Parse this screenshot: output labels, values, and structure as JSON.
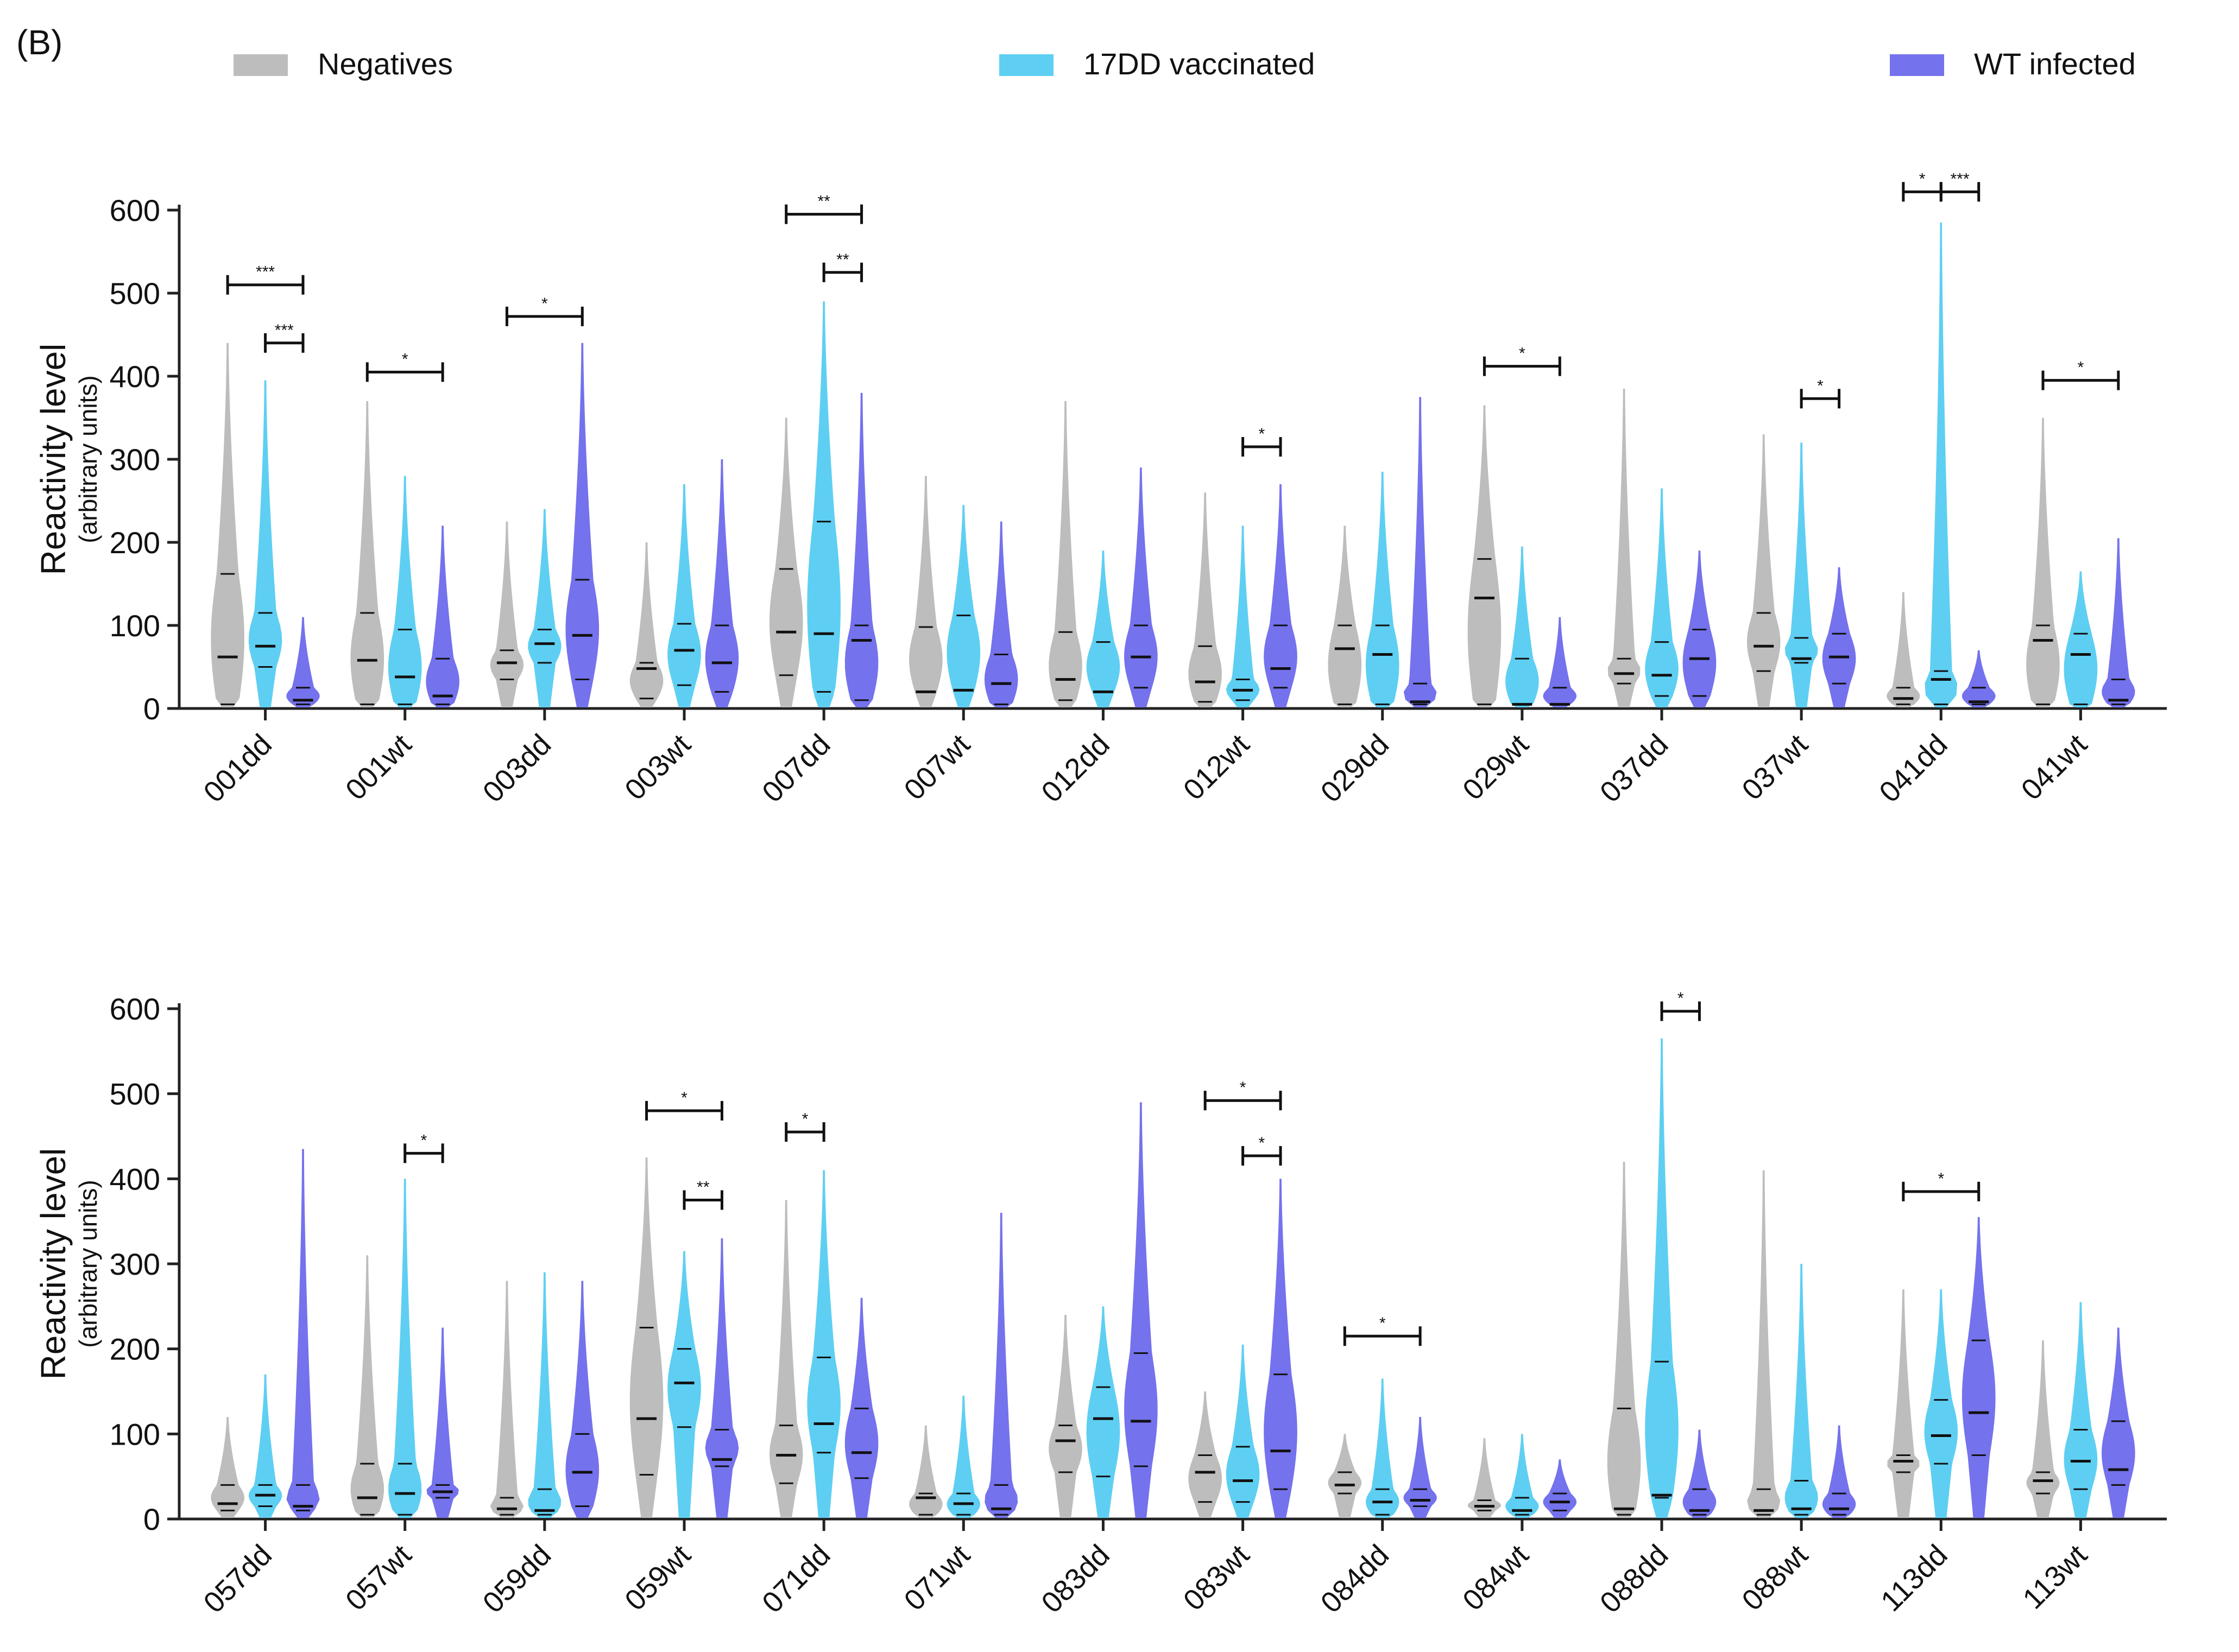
{
  "panel_label": "(B)",
  "legend": [
    {
      "label": "Negatives",
      "color": "#bdbdbd"
    },
    {
      "label": "17DD vaccinated",
      "color": "#5ecff2"
    },
    {
      "label": "WT infected",
      "color": "#7472ec"
    }
  ],
  "chart_data": [
    {
      "type": "violin",
      "title": "",
      "ylabel": "Reactivity level",
      "ylabel_sub": "(arbitrary units)",
      "xlabel": "",
      "ylim": [
        0,
        600
      ],
      "yticks": [
        0,
        100,
        200,
        300,
        400,
        500,
        600
      ],
      "categories": [
        "001dd",
        "001wt",
        "003dd",
        "003wt",
        "007dd",
        "007wt",
        "012dd",
        "012wt",
        "029dd",
        "029wt",
        "037dd",
        "037wt",
        "041dd",
        "041wt"
      ],
      "series": [
        {
          "name": "Negatives",
          "color": "#bdbdbd",
          "max": [
            440,
            370,
            225,
            200,
            350,
            280,
            370,
            260,
            220,
            365,
            385,
            330,
            140,
            350
          ],
          "q1": [
            5,
            5,
            35,
            12,
            40,
            20,
            10,
            8,
            5,
            5,
            30,
            45,
            5,
            5
          ],
          "median": [
            62,
            58,
            55,
            48,
            92,
            20,
            35,
            32,
            72,
            133,
            42,
            75,
            12,
            82
          ],
          "q3": [
            162,
            115,
            70,
            55,
            168,
            98,
            92,
            75,
            100,
            180,
            60,
            115,
            25,
            100
          ]
        },
        {
          "name": "17DD vaccinated",
          "color": "#5ecff2",
          "max": [
            395,
            280,
            240,
            270,
            490,
            245,
            190,
            220,
            285,
            195,
            265,
            320,
            585,
            165
          ],
          "q1": [
            50,
            5,
            55,
            28,
            20,
            22,
            20,
            10,
            5,
            5,
            15,
            55,
            5,
            5
          ],
          "median": [
            75,
            38,
            78,
            70,
            90,
            22,
            20,
            22,
            65,
            5,
            40,
            60,
            35,
            65
          ],
          "q3": [
            115,
            95,
            95,
            102,
            225,
            112,
            80,
            35,
            100,
            60,
            80,
            85,
            45,
            90
          ]
        },
        {
          "name": "WT infected",
          "color": "#7472ec",
          "max": [
            110,
            220,
            440,
            300,
            380,
            225,
            290,
            270,
            375,
            110,
            190,
            170,
            70,
            205
          ],
          "q1": [
            5,
            5,
            35,
            20,
            10,
            5,
            25,
            25,
            5,
            5,
            15,
            30,
            5,
            5
          ],
          "median": [
            10,
            15,
            88,
            55,
            82,
            30,
            62,
            48,
            8,
            5,
            60,
            62,
            8,
            10
          ],
          "q3": [
            25,
            60,
            155,
            100,
            100,
            65,
            100,
            100,
            30,
            25,
            95,
            90,
            25,
            35
          ]
        }
      ],
      "significance": [
        {
          "group": 0,
          "from": "Negatives",
          "to": "WT infected",
          "label": "***",
          "y": 510
        },
        {
          "group": 0,
          "from": "17DD vaccinated",
          "to": "WT infected",
          "label": "***",
          "y": 440
        },
        {
          "group": 1,
          "from": "Negatives",
          "to": "WT infected",
          "label": "*",
          "y": 405
        },
        {
          "group": 2,
          "from": "Negatives",
          "to": "WT infected",
          "label": "*",
          "y": 472
        },
        {
          "group": 4,
          "from": "Negatives",
          "to": "WT infected",
          "label": "**",
          "y": 595
        },
        {
          "group": 4,
          "from": "17DD vaccinated",
          "to": "WT infected",
          "label": "**",
          "y": 525
        },
        {
          "group": 7,
          "from": "17DD vaccinated",
          "to": "WT infected",
          "label": "*",
          "y": 315
        },
        {
          "group": 9,
          "from": "Negatives",
          "to": "WT infected",
          "label": "*",
          "y": 412
        },
        {
          "group": 11,
          "from": "17DD vaccinated",
          "to": "WT infected",
          "label": "*",
          "y": 373
        },
        {
          "group": 12,
          "from": "Negatives",
          "to": "17DD vaccinated",
          "label": "*",
          "y": 622
        },
        {
          "group": 12,
          "from": "17DD vaccinated",
          "to": "WT infected",
          "label": "***",
          "y": 622
        },
        {
          "group": 13,
          "from": "Negatives",
          "to": "WT infected",
          "label": "*",
          "y": 395
        }
      ]
    },
    {
      "type": "violin",
      "title": "",
      "ylabel": "Reactivity level",
      "ylabel_sub": "(arbitrary units)",
      "xlabel": "",
      "ylim": [
        0,
        600
      ],
      "yticks": [
        0,
        100,
        200,
        300,
        400,
        500,
        600
      ],
      "categories": [
        "057dd",
        "057wt",
        "059dd",
        "059wt",
        "071dd",
        "071wt",
        "083dd",
        "083wt",
        "084dd",
        "084wt",
        "088dd",
        "088wt",
        "113dd",
        "113wt"
      ],
      "series": [
        {
          "name": "Negatives",
          "color": "#bdbdbd",
          "max": [
            120,
            310,
            280,
            425,
            375,
            110,
            240,
            150,
            100,
            95,
            420,
            410,
            270,
            210
          ],
          "q1": [
            10,
            5,
            5,
            52,
            42,
            5,
            55,
            20,
            30,
            10,
            5,
            5,
            55,
            30
          ],
          "median": [
            18,
            25,
            12,
            118,
            75,
            25,
            92,
            55,
            40,
            15,
            12,
            10,
            68,
            45
          ],
          "q3": [
            40,
            65,
            25,
            225,
            110,
            30,
            110,
            75,
            55,
            22,
            130,
            35,
            75,
            55
          ]
        },
        {
          "name": "17DD vaccinated",
          "color": "#5ecff2",
          "max": [
            170,
            400,
            290,
            315,
            410,
            145,
            250,
            205,
            165,
            100,
            565,
            300,
            270,
            255
          ],
          "q1": [
            15,
            5,
            5,
            108,
            78,
            5,
            50,
            20,
            5,
            5,
            25,
            5,
            65,
            35
          ],
          "median": [
            28,
            30,
            10,
            160,
            112,
            18,
            118,
            45,
            20,
            10,
            28,
            12,
            98,
            68
          ],
          "q3": [
            40,
            65,
            35,
            200,
            190,
            30,
            155,
            85,
            35,
            25,
            185,
            45,
            140,
            105
          ]
        },
        {
          "name": "WT infected",
          "color": "#7472ec",
          "max": [
            435,
            225,
            280,
            330,
            260,
            360,
            490,
            400,
            120,
            70,
            105,
            110,
            355,
            225
          ],
          "q1": [
            10,
            25,
            15,
            62,
            48,
            5,
            62,
            35,
            15,
            10,
            5,
            5,
            75,
            40
          ],
          "median": [
            15,
            32,
            55,
            70,
            78,
            12,
            115,
            80,
            22,
            20,
            10,
            12,
            125,
            58
          ],
          "q3": [
            40,
            40,
            100,
            105,
            130,
            40,
            195,
            170,
            35,
            30,
            35,
            30,
            210,
            115
          ]
        }
      ],
      "significance": [
        {
          "group": 1,
          "from": "17DD vaccinated",
          "to": "WT infected",
          "label": "*",
          "y": 430
        },
        {
          "group": 3,
          "from": "Negatives",
          "to": "WT infected",
          "label": "*",
          "y": 480
        },
        {
          "group": 3,
          "from": "17DD vaccinated",
          "to": "WT infected",
          "label": "**",
          "y": 375
        },
        {
          "group": 4,
          "from": "Negatives",
          "to": "17DD vaccinated",
          "label": "*",
          "y": 455
        },
        {
          "group": 7,
          "from": "Negatives",
          "to": "WT infected",
          "label": "*",
          "y": 492
        },
        {
          "group": 7,
          "from": "17DD vaccinated",
          "to": "WT infected",
          "label": "*",
          "y": 427
        },
        {
          "group": 8,
          "from": "Negatives",
          "to": "WT infected",
          "label": "*",
          "y": 215
        },
        {
          "group": 10,
          "from": "17DD vaccinated",
          "to": "WT infected",
          "label": "*",
          "y": 597
        },
        {
          "group": 12,
          "from": "Negatives",
          "to": "WT infected",
          "label": "*",
          "y": 385
        }
      ]
    }
  ]
}
